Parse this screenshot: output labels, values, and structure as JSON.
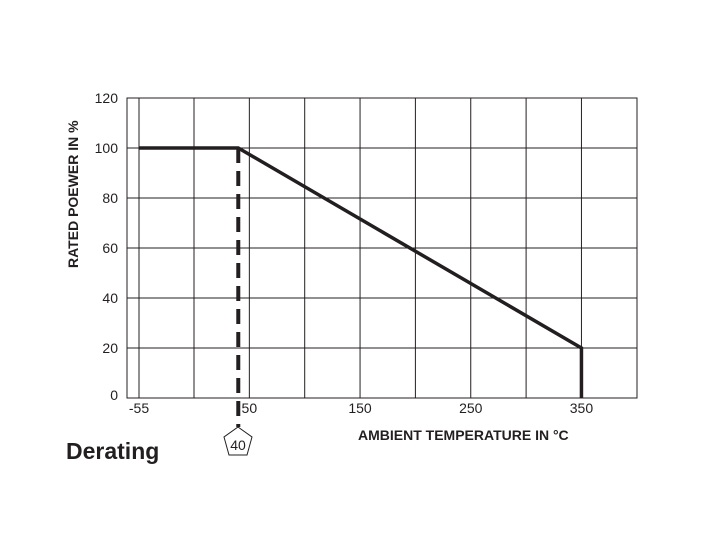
{
  "chart_data": {
    "type": "line",
    "title": "Derating",
    "xlabel": "AMBIENT TEMPERATURE IN °C",
    "ylabel": "RATED POEWER IN %",
    "x_ticks": [
      "-55",
      "50",
      "150",
      "250",
      "350"
    ],
    "x_gridlines": [
      -55,
      0,
      50,
      100,
      150,
      200,
      250,
      300,
      350
    ],
    "y_ticks": [
      "0",
      "20",
      "40",
      "60",
      "80",
      "100",
      "120"
    ],
    "xlim": [
      -75,
      400
    ],
    "ylim": [
      0,
      120
    ],
    "grid": true,
    "series": [
      {
        "x": [
          -55,
          40,
          350,
          350
        ],
        "y": [
          100,
          100,
          20,
          0
        ],
        "color": "#231f20"
      }
    ],
    "annotations": [
      {
        "text": "40",
        "x": 40,
        "style": "dashed vertical line with pentagon marker"
      }
    ],
    "line_color": "#231f20",
    "grid_color": "#231f20"
  }
}
